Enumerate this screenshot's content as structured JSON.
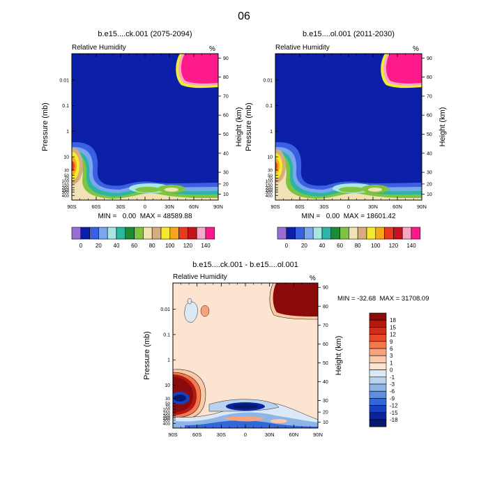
{
  "page_title": "06",
  "chart_data": [
    {
      "type": "heatmap",
      "title": "b.e15....ck.001 (2075-2094)",
      "variable": "Relative Humidity",
      "units": "%",
      "xlabel": "",
      "ylabel": "Pressure (mb)",
      "y2label": "Height (km)",
      "x_ticks": [
        "90S",
        "60S",
        "30S",
        "0",
        "30N",
        "60N",
        "90N"
      ],
      "y_ticks": [
        "0.01",
        "0.1",
        "1",
        "10",
        "30",
        "50",
        "70",
        "100",
        "150",
        "200",
        "250",
        "300",
        "400"
      ],
      "y2_ticks": [
        "90",
        "80",
        "70",
        "60",
        "50",
        "40",
        "30",
        "20",
        "10"
      ],
      "stats": "MIN =   0.00  MAX = 48589.88",
      "colorbar_labels": [
        "0",
        "20",
        "40",
        "60",
        "80",
        "100",
        "120",
        "140"
      ],
      "colorbar_colors": [
        "#9a6fd4",
        "#0b1fa8",
        "#3a5fe0",
        "#7aa6ee",
        "#a8e6e6",
        "#2bb5a3",
        "#1d8a36",
        "#7fc441",
        "#f1e1b5",
        "#d8ad7e",
        "#f4ea2e",
        "#f7a51a",
        "#e83a1f",
        "#c2141a",
        "#f7a8c6",
        "#ff1a8c"
      ]
    },
    {
      "type": "heatmap",
      "title": "b.e15....ol.001 (2011-2030)",
      "variable": "Relative Humidity",
      "units": "%",
      "xlabel": "",
      "ylabel": "Pressure (mb)",
      "y2label": "Height (km)",
      "x_ticks": [
        "90S",
        "60S",
        "30S",
        "0",
        "30N",
        "60N",
        "90N"
      ],
      "y_ticks": [
        "0.01",
        "0.1",
        "1",
        "10",
        "30",
        "50",
        "70",
        "100",
        "150",
        "200",
        "250",
        "300",
        "400"
      ],
      "y2_ticks": [
        "90",
        "80",
        "70",
        "60",
        "50",
        "40",
        "30",
        "20",
        "10"
      ],
      "stats": "MIN =   0.00  MAX = 18601.42",
      "colorbar_labels": [
        "0",
        "20",
        "40",
        "60",
        "80",
        "100",
        "120",
        "140"
      ],
      "colorbar_colors": [
        "#9a6fd4",
        "#0b1fa8",
        "#3a5fe0",
        "#7aa6ee",
        "#a8e6e6",
        "#2bb5a3",
        "#1d8a36",
        "#7fc441",
        "#f1e1b5",
        "#d8ad7e",
        "#f4ea2e",
        "#f7a51a",
        "#e83a1f",
        "#c2141a",
        "#f7a8c6",
        "#ff1a8c"
      ]
    },
    {
      "type": "heatmap",
      "title": "b.e15....ck.001 - b.e15....ol.001",
      "variable": "Relative Humidity",
      "units": "%",
      "xlabel": "",
      "ylabel": "Pressure (mb)",
      "y2label": "Height (km)",
      "x_ticks": [
        "90S",
        "60S",
        "30S",
        "0",
        "30N",
        "60N",
        "90N"
      ],
      "y_ticks": [
        "0.01",
        "0.1",
        "1",
        "10",
        "30",
        "50",
        "70",
        "100",
        "150",
        "200",
        "250",
        "300",
        "400"
      ],
      "y2_ticks": [
        "90",
        "80",
        "70",
        "60",
        "50",
        "40",
        "30",
        "20",
        "10"
      ],
      "stats": "MIN = -32.68  MAX = 31708.09",
      "colorbar_labels": [
        "18",
        "15",
        "12",
        "9",
        "6",
        "3",
        "1",
        "0",
        "-1",
        "-3",
        "-6",
        "-9",
        "-12",
        "-15",
        "-18"
      ],
      "colorbar_colors": [
        "#8b0a0a",
        "#b01a10",
        "#cf2d1a",
        "#e9492a",
        "#f47a4e",
        "#f8a27e",
        "#fbc8a8",
        "#fde4d0",
        "#dbe8f6",
        "#b8d3ef",
        "#8fb5e6",
        "#5f8fdb",
        "#3366d6",
        "#1940c0",
        "#0a249a",
        "#061870"
      ]
    }
  ]
}
